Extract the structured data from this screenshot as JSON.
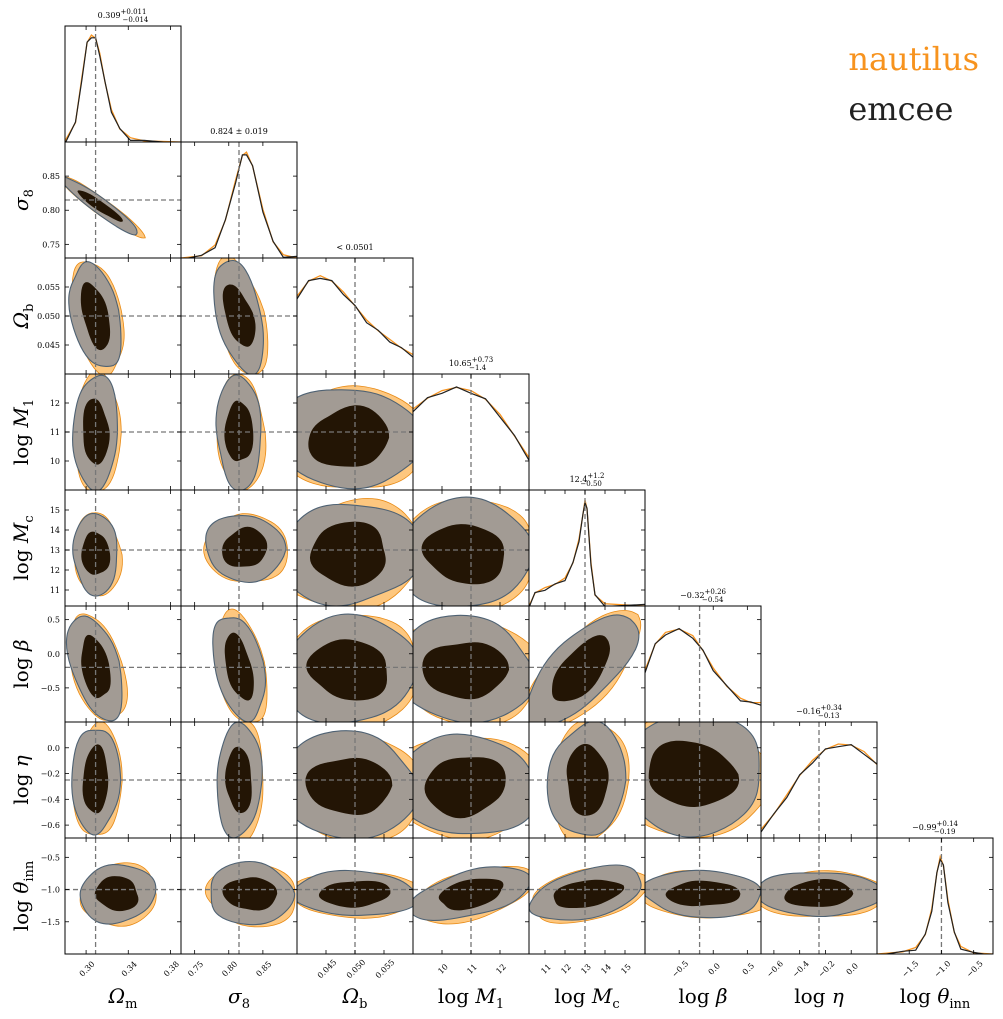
{
  "chart_data": {
    "type": "corner",
    "legend_placement": "top-right",
    "series": [
      {
        "name": "nautilus",
        "color": "#f7931e"
      },
      {
        "name": "emcee",
        "color": "#222222"
      }
    ],
    "contour_colors": {
      "inner": "#231505",
      "outer_emcee": "#a29b94",
      "outer_nautilus": "#fdc77f",
      "edge_emcee": "#4f6273",
      "edge_nautilus": "#e88a14"
    },
    "parameters": [
      {
        "label": "Ω",
        "sub": "m",
        "prefix": "",
        "truth": 0.309,
        "range": [
          0.28,
          0.39
        ],
        "ticks": [
          "0.30",
          "0.34",
          "0.38"
        ],
        "tick_values": [
          0.3,
          0.34,
          0.38
        ],
        "summary": "0.309",
        "summary_up": "+0.011",
        "summary_dn": "−0.014",
        "summary_pm": "",
        "summary_lt": "",
        "pdf": [
          [
            0.28,
            0.01
          ],
          [
            0.29,
            0.18
          ],
          [
            0.296,
            0.6
          ],
          [
            0.301,
            0.92
          ],
          [
            0.305,
            0.99
          ],
          [
            0.309,
            0.96
          ],
          [
            0.313,
            0.82
          ],
          [
            0.318,
            0.55
          ],
          [
            0.324,
            0.3
          ],
          [
            0.332,
            0.12
          ],
          [
            0.342,
            0.04
          ],
          [
            0.355,
            0.01
          ],
          [
            0.39,
            0.0
          ]
        ]
      },
      {
        "label": "σ",
        "sub": "8",
        "prefix": "",
        "truth": 0.815,
        "range": [
          0.73,
          0.9
        ],
        "ticks": [
          "0.75",
          "0.80",
          "0.85"
        ],
        "tick_values": [
          0.75,
          0.8,
          0.85
        ],
        "summary": "",
        "summary_up": "",
        "summary_dn": "",
        "summary_pm": "0.824 ± 0.019",
        "summary_lt": "",
        "pdf": [
          [
            0.73,
            0.0
          ],
          [
            0.76,
            0.02
          ],
          [
            0.78,
            0.12
          ],
          [
            0.795,
            0.35
          ],
          [
            0.81,
            0.72
          ],
          [
            0.82,
            0.95
          ],
          [
            0.826,
            0.98
          ],
          [
            0.835,
            0.85
          ],
          [
            0.85,
            0.45
          ],
          [
            0.865,
            0.15
          ],
          [
            0.88,
            0.03
          ],
          [
            0.9,
            0.0
          ]
        ]
      },
      {
        "label": "Ω",
        "sub": "b",
        "prefix": "",
        "truth": 0.05,
        "range": [
          0.04,
          0.06
        ],
        "ticks": [
          "0.045",
          "0.050",
          "0.055"
        ],
        "tick_values": [
          0.045,
          0.05,
          0.055
        ],
        "summary": "",
        "summary_up": "",
        "summary_dn": "",
        "summary_pm": "",
        "summary_lt": "< 0.0501",
        "pdf": [
          [
            0.04,
            0.72
          ],
          [
            0.042,
            0.86
          ],
          [
            0.044,
            0.91
          ],
          [
            0.046,
            0.86
          ],
          [
            0.048,
            0.76
          ],
          [
            0.05,
            0.63
          ],
          [
            0.052,
            0.5
          ],
          [
            0.054,
            0.4
          ],
          [
            0.056,
            0.32
          ],
          [
            0.058,
            0.24
          ],
          [
            0.06,
            0.18
          ]
        ]
      },
      {
        "label": "M",
        "sub": "1",
        "prefix": "log ",
        "truth": 11.0,
        "range": [
          9.0,
          13.0
        ],
        "ticks": [
          "10",
          "11",
          "12"
        ],
        "tick_values": [
          10,
          11,
          12
        ],
        "summary": "10.65",
        "summary_up": "+0.73",
        "summary_dn": "−1.4",
        "summary_pm": "",
        "summary_lt": "",
        "pdf": [
          [
            9.0,
            0.75
          ],
          [
            9.5,
            0.85
          ],
          [
            10.0,
            0.92
          ],
          [
            10.5,
            0.95
          ],
          [
            11.0,
            0.92
          ],
          [
            11.5,
            0.84
          ],
          [
            12.0,
            0.7
          ],
          [
            12.5,
            0.5
          ],
          [
            13.0,
            0.3
          ]
        ]
      },
      {
        "label": "M",
        "sub": "c",
        "prefix": "log ",
        "truth": 13.0,
        "range": [
          10.2,
          16.0
        ],
        "ticks": [
          "11",
          "12",
          "13",
          "14",
          "15"
        ],
        "tick_values": [
          11,
          12,
          13,
          14,
          15
        ],
        "summary": "12.4",
        "summary_up": "+1.2",
        "summary_dn": "−0.50",
        "summary_pm": "",
        "summary_lt": "",
        "pdf": [
          [
            10.2,
            0.0
          ],
          [
            10.5,
            0.12
          ],
          [
            11.0,
            0.17
          ],
          [
            11.5,
            0.2
          ],
          [
            12.0,
            0.26
          ],
          [
            12.4,
            0.4
          ],
          [
            12.7,
            0.62
          ],
          [
            12.9,
            0.85
          ],
          [
            13.0,
            0.98
          ],
          [
            13.1,
            0.9
          ],
          [
            13.3,
            0.4
          ],
          [
            13.5,
            0.1
          ],
          [
            14.0,
            0.02
          ],
          [
            16.0,
            0.0
          ]
        ]
      },
      {
        "label": "β",
        "sub": "",
        "prefix": "log ",
        "truth": -0.2,
        "range": [
          -1.0,
          0.7
        ],
        "ticks": [
          "−0.5",
          "0.0",
          "0.5"
        ],
        "tick_values": [
          -0.5,
          0.0,
          0.5
        ],
        "summary": "−0.32",
        "summary_up": "+0.26",
        "summary_dn": "−0.54",
        "summary_pm": "",
        "summary_lt": "",
        "pdf": [
          [
            -1.0,
            0.48
          ],
          [
            -0.85,
            0.72
          ],
          [
            -0.7,
            0.83
          ],
          [
            -0.5,
            0.86
          ],
          [
            -0.3,
            0.8
          ],
          [
            -0.15,
            0.66
          ],
          [
            0.0,
            0.5
          ],
          [
            0.2,
            0.33
          ],
          [
            0.4,
            0.22
          ],
          [
            0.55,
            0.18
          ],
          [
            0.7,
            0.18
          ]
        ]
      },
      {
        "label": "η",
        "sub": "",
        "prefix": "log ",
        "truth": -0.25,
        "range": [
          -0.7,
          0.2
        ],
        "ticks": [
          "−0.6",
          "−0.4",
          "−0.2",
          "0.0"
        ],
        "tick_values": [
          -0.6,
          -0.4,
          -0.2,
          0.0
        ],
        "summary": "−0.16",
        "summary_up": "+0.34",
        "summary_dn": "−0.13",
        "summary_pm": "",
        "summary_lt": "",
        "pdf": [
          [
            -0.7,
            0.08
          ],
          [
            -0.6,
            0.22
          ],
          [
            -0.5,
            0.4
          ],
          [
            -0.4,
            0.58
          ],
          [
            -0.3,
            0.72
          ],
          [
            -0.2,
            0.82
          ],
          [
            -0.1,
            0.87
          ],
          [
            0.0,
            0.86
          ],
          [
            0.1,
            0.8
          ],
          [
            0.2,
            0.68
          ]
        ]
      },
      {
        "label": "θ",
        "sub": "inn",
        "prefix": "log ",
        "truth": -1.0,
        "range": [
          -2.0,
          -0.2
        ],
        "ticks": [
          "−1.5",
          "−1.0",
          "−0.5"
        ],
        "tick_values": [
          -1.5,
          -1.0,
          -0.5
        ],
        "summary": "−0.99",
        "summary_up": "+0.14",
        "summary_dn": "−0.19",
        "summary_pm": "",
        "summary_lt": "",
        "pdf": [
          [
            -2.0,
            0.0
          ],
          [
            -1.6,
            0.02
          ],
          [
            -1.4,
            0.06
          ],
          [
            -1.25,
            0.18
          ],
          [
            -1.15,
            0.42
          ],
          [
            -1.07,
            0.75
          ],
          [
            -1.02,
            0.9
          ],
          [
            -0.97,
            0.82
          ],
          [
            -0.9,
            0.5
          ],
          [
            -0.8,
            0.2
          ],
          [
            -0.7,
            0.07
          ],
          [
            -0.5,
            0.01
          ],
          [
            -0.2,
            0.0
          ]
        ]
      }
    ],
    "y_ticks": [
      null,
      {
        "ticks": [
          "0.75",
          "0.80",
          "0.85"
        ],
        "tick_values": [
          0.75,
          0.8,
          0.85
        ]
      },
      {
        "ticks": [
          "0.045",
          "0.050",
          "0.055"
        ],
        "tick_values": [
          0.045,
          0.05,
          0.055
        ]
      },
      {
        "ticks": [
          "10",
          "11",
          "12"
        ],
        "tick_values": [
          10,
          11,
          12
        ]
      },
      {
        "ticks": [
          "11",
          "12",
          "13",
          "14",
          "15"
        ],
        "tick_values": [
          11,
          12,
          13,
          14,
          15
        ]
      },
      {
        "ticks": [
          "−0.5",
          "0.0",
          "0.5"
        ],
        "tick_values": [
          -0.5,
          0.0,
          0.5
        ]
      },
      {
        "ticks": [
          "−0.6",
          "−0.4",
          "−0.2",
          "0.0"
        ],
        "tick_values": [
          -0.6,
          -0.4,
          -0.2,
          0.0
        ]
      },
      {
        "ticks": [
          "−1.5",
          "−1.0",
          "−0.5"
        ],
        "tick_values": [
          -1.5,
          -1.0,
          -0.5
        ]
      }
    ]
  }
}
